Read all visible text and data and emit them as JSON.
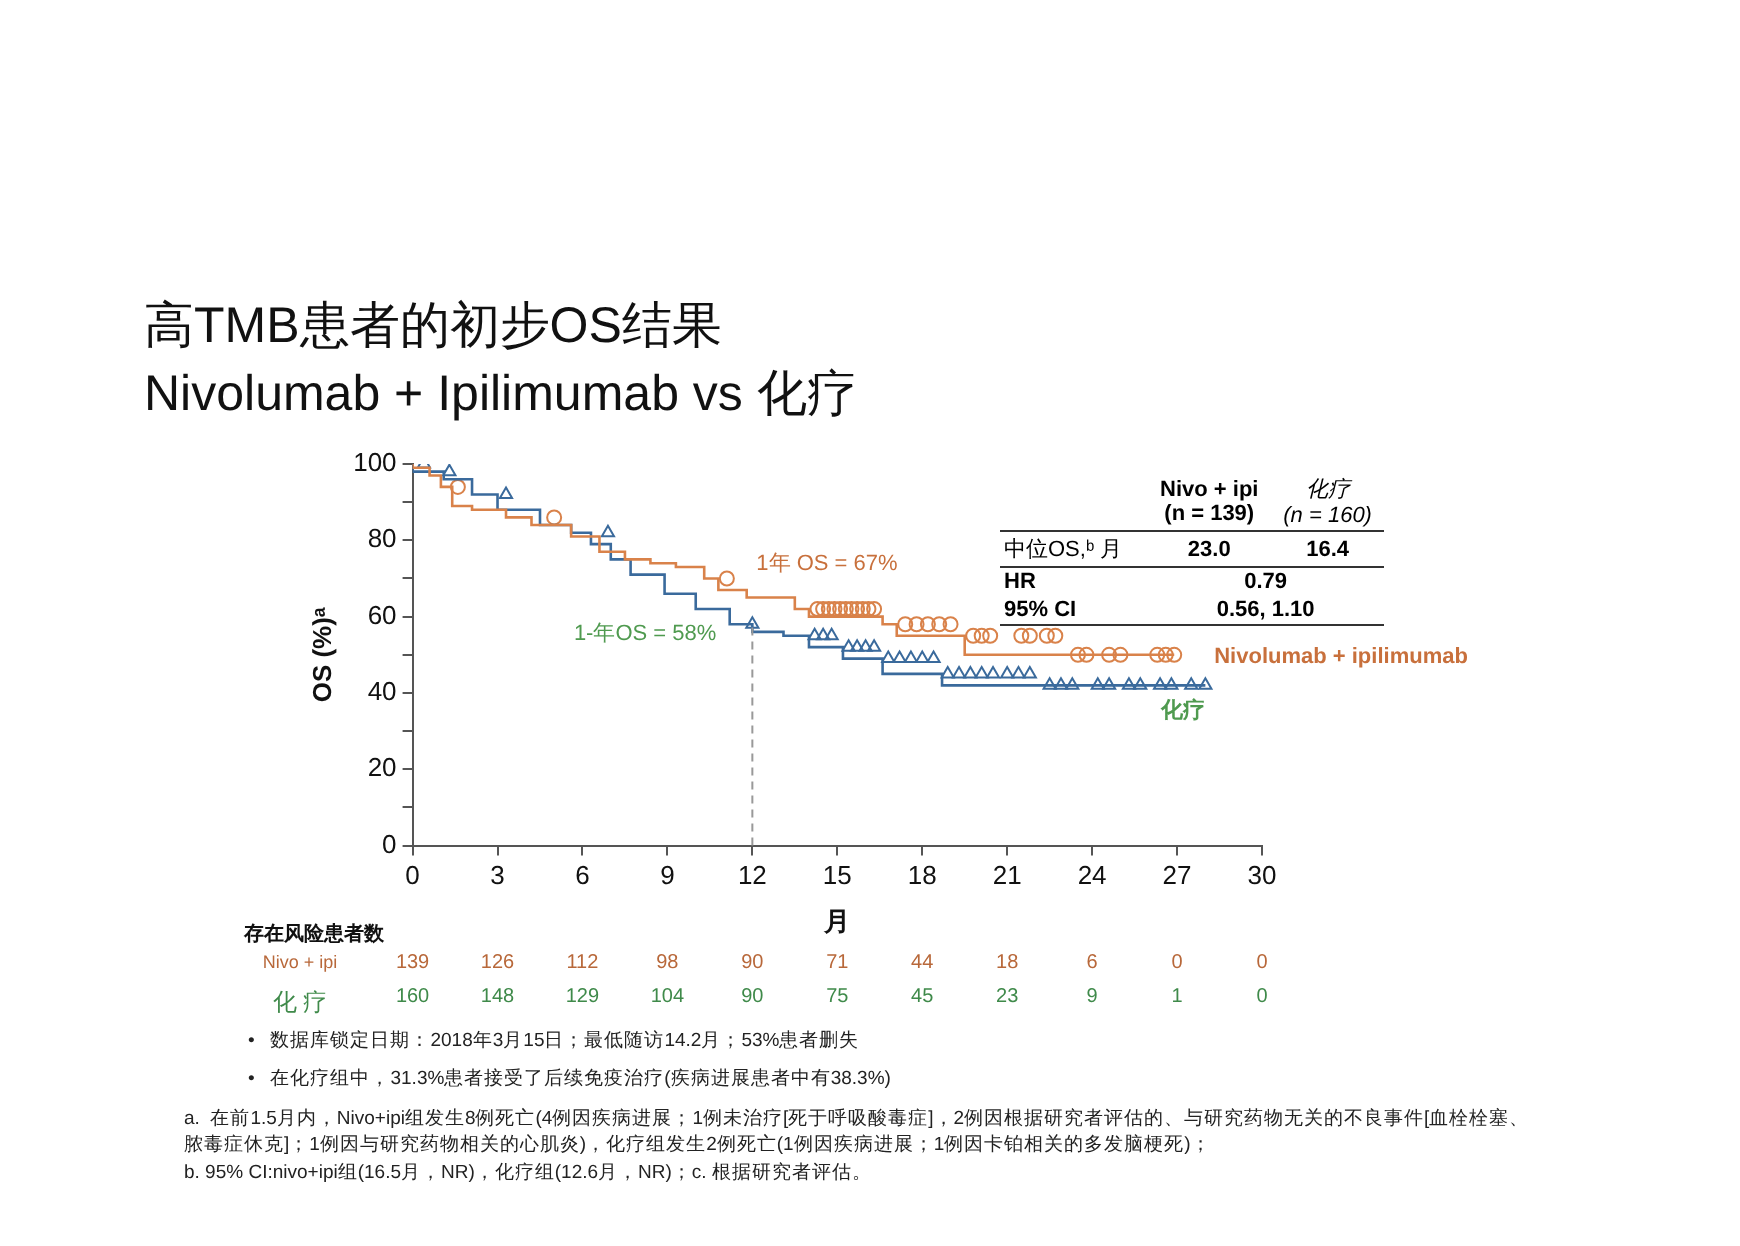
{
  "chart_data": {
    "type": "step",
    "title": "高TMB患者的初步OS结果",
    "subtitle": "Nivolumab + Ipilimumab vs 化疗",
    "xlabel": "月",
    "ylabel": "OS (%)ᵃ",
    "xlim": [
      0,
      30
    ],
    "xticks": [
      0,
      3,
      6,
      9,
      12,
      15,
      18,
      21,
      24,
      27,
      30
    ],
    "ylim": [
      0,
      100
    ],
    "yticks": [
      0,
      {
        "value": 10,
        "label": null
      },
      20,
      {
        "value": 30,
        "label": null
      },
      40,
      {
        "value": 50,
        "label": null
      },
      60,
      {
        "value": 70,
        "label": null
      },
      80,
      {
        "value": 90,
        "label": null
      },
      100
    ],
    "grid": false,
    "legend": false,
    "series": [
      {
        "name": "Nivolumab + ipilimumab",
        "color": "#d9824a",
        "x": [
          0,
          0.6,
          1.0,
          1.4,
          2.1,
          3.3,
          4.2,
          5.6,
          6.6,
          7.5,
          8.4,
          9.3,
          10.3,
          10.8,
          11.8,
          13.5,
          14.0,
          16.6,
          17.1,
          19.5,
          23.1,
          26.9
        ],
        "values": [
          100,
          99,
          97,
          94,
          89,
          88,
          86,
          84,
          81,
          77,
          75,
          74,
          73,
          70,
          67,
          65,
          62,
          60,
          58,
          55,
          50,
          50
        ]
      },
      {
        "name": "化疗",
        "color": "#3a6a9c",
        "x": [
          0,
          1.1,
          2.1,
          3.0,
          4.5,
          5.6,
          6.3,
          7.0,
          7.7,
          8.9,
          10.0,
          11.2,
          12.0,
          13.1,
          14.0,
          15.2,
          16.6,
          18.7,
          22.2,
          28.0
        ],
        "values": [
          100,
          98,
          96,
          92,
          88,
          84,
          82,
          79,
          75,
          71,
          66,
          62,
          58,
          56,
          55,
          52,
          49,
          45,
          42,
          42
        ]
      },
      {
        "color": "#d9824a",
        "type": "scatter",
        "marker": "circle",
        "x": [
          1.6,
          5.0,
          11.1,
          14.3,
          14.5,
          14.7,
          14.9,
          15.1,
          15.3,
          15.5,
          15.7,
          15.9,
          16.1,
          16.3,
          17.4,
          17.8,
          18.2,
          18.6,
          19.0,
          19.8,
          20.1,
          20.4,
          21.5,
          21.8,
          22.4,
          22.7,
          23.5,
          23.8,
          24.6,
          25.0,
          26.3,
          26.6,
          26.9
        ],
        "values": [
          94,
          86,
          70,
          62,
          62,
          62,
          62,
          62,
          62,
          62,
          62,
          62,
          62,
          62,
          58,
          58,
          58,
          58,
          58,
          55,
          55,
          55,
          55,
          55,
          55,
          55,
          50,
          50,
          50,
          50,
          50,
          50,
          50
        ]
      },
      {
        "color": "#3a6a9c",
        "type": "scatter",
        "marker": "triangle",
        "x": [
          0.4,
          1.3,
          3.3,
          6.9,
          12.0,
          14.2,
          14.5,
          14.8,
          15.4,
          15.7,
          16.0,
          16.3,
          16.8,
          17.2,
          17.6,
          18.0,
          18.4,
          18.9,
          19.3,
          19.7,
          20.1,
          20.5,
          21.0,
          21.4,
          21.8,
          22.5,
          22.9,
          23.3,
          24.2,
          24.6,
          25.3,
          25.7,
          26.4,
          26.8,
          27.5,
          28.0
        ],
        "values": [
          100,
          98,
          92,
          82,
          58,
          55,
          55,
          55,
          52,
          52,
          52,
          52,
          49,
          49,
          49,
          49,
          49,
          45,
          45,
          45,
          45,
          45,
          45,
          45,
          45,
          42,
          42,
          42,
          42,
          42,
          42,
          42,
          42,
          42,
          42,
          42
        ]
      }
    ],
    "ref_lines": [
      {
        "axis": "x",
        "value": 12,
        "color": "#999999",
        "line_style": "dashed"
      }
    ],
    "annotations": [
      {
        "text": "1年 OS = 67%",
        "x": 12,
        "y": 67
      },
      {
        "text": "1-年OS = 58%",
        "x": 12,
        "y": 58
      },
      "Nivo + ipi",
      "(n = 139)",
      "化疗",
      "(n = 160)",
      "中位OS,ᵇ 月",
      "23.0",
      "16.4",
      "HR",
      "0.79",
      "95% CI",
      "0.56, 1.10",
      "存在风险患者数",
      "Nivo + ipi",
      "139",
      "126",
      "112",
      "98",
      "90",
      "71",
      "44",
      "18",
      "6",
      "0",
      "0",
      "化 疗",
      "160",
      "148",
      "129",
      "104",
      "90",
      "75",
      "45",
      "23",
      "9",
      "1",
      "0",
      "•   数据库锁定日期：2018年3月15日；最低随访14.2月；53%患者删失",
      "•   在化疗组中，31.3%患者接受了后续免疫治疗(疾病进展患者中有38.3%)",
      "a.  在前1.5月内，Nivo+ipi组发生8例死亡(4例因疾病进展；1例未治疗[死于呼吸酸毒症]，2例因根据研究者评估的、与研究药物无关的不良事件[血栓栓塞、脓毒症休克]；1例因与研究药物相关的心肌炎)，化疗组发生2例死亡(1例因疾病进展；1例因卡铂相关的多发脑梗死)；",
      "b. 95% CI:nivo+ipi组(16.5月，NR)，化疗组(12.6月，NR)；c. 根据研究者评估。"
    ]
  }
}
